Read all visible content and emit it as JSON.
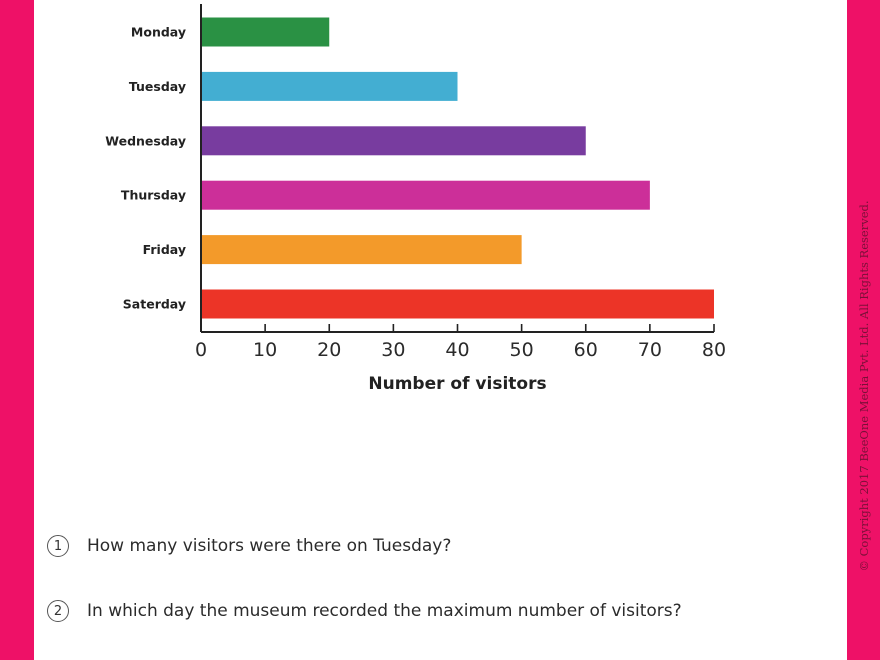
{
  "chart_data": {
    "type": "bar",
    "orientation": "horizontal",
    "categories": [
      "Monday",
      "Tuesday",
      "Wednesday",
      "Thursday",
      "Friday",
      "Saterday"
    ],
    "values": [
      20,
      40,
      60,
      70,
      50,
      80
    ],
    "colors": [
      "#2a9144",
      "#43aed2",
      "#783c9f",
      "#cc2f99",
      "#f39a2a",
      "#ec3427"
    ],
    "xlabel": "Number of visitors",
    "ylabel": "",
    "xlim": [
      0,
      80
    ],
    "xticks": [
      0,
      10,
      20,
      30,
      40,
      50,
      60,
      70,
      80
    ],
    "grid": false
  },
  "questions": [
    {
      "number": "1",
      "text": "How many visitors were there on Tuesday?"
    },
    {
      "number": "2",
      "text": "In which day the museum recorded the maximum number of visitors?"
    }
  ],
  "copyright": "© Copyright 2017 BeeOne Media Pvt. Ltd. All Rights Reserved.",
  "colors": {
    "border_band": "#ee1167",
    "axis": "#222222"
  }
}
